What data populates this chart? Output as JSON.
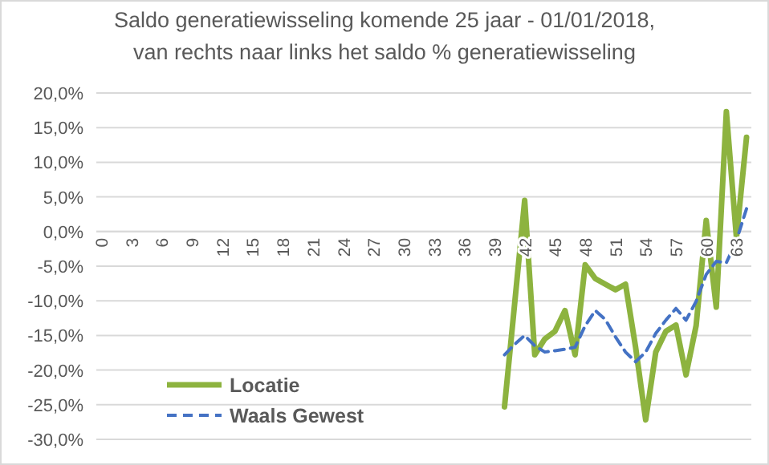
{
  "chart_data": {
    "type": "line",
    "title": "Saldo generatiewisseling komende 25 jaar - 01/01/2018,\nvan rechts naar links  het saldo % generatiewisseling",
    "categories": [
      "0",
      null,
      null,
      "3",
      null,
      null,
      "6",
      null,
      null,
      "9",
      null,
      null,
      "12",
      null,
      null,
      "15",
      null,
      null,
      "18",
      null,
      null,
      "21",
      null,
      null,
      "24",
      null,
      null,
      "27",
      null,
      null,
      "30",
      null,
      null,
      "33",
      null,
      null,
      "36",
      null,
      null,
      "39",
      null,
      null,
      "42",
      null,
      null,
      "45",
      null,
      null,
      "48",
      null,
      null,
      "51",
      null,
      null,
      "54",
      null,
      null,
      "57",
      null,
      null,
      "60",
      null,
      null,
      "63",
      null
    ],
    "series": [
      {
        "name": "Locatie",
        "color": "#8db33f",
        "line_style": "solid",
        "values": [
          null,
          null,
          null,
          null,
          null,
          null,
          null,
          null,
          null,
          null,
          null,
          null,
          null,
          null,
          null,
          null,
          null,
          null,
          null,
          null,
          null,
          null,
          null,
          null,
          null,
          null,
          null,
          null,
          null,
          null,
          null,
          null,
          null,
          null,
          null,
          null,
          null,
          null,
          null,
          null,
          -25.3,
          -10.5,
          4.5,
          -17.8,
          -15.5,
          -14.4,
          -11.4,
          -17.8,
          -4.8,
          -6.8,
          -7.6,
          -8.4,
          -7.6,
          -16.7,
          -27.2,
          -17.4,
          -14.4,
          -13.5,
          -20.7,
          -13.6,
          1.6,
          -10.9,
          17.3,
          -0.9,
          13.6
        ]
      },
      {
        "name": "Waals Gewest",
        "color": "#4472c4",
        "line_style": "dashed",
        "values": [
          null,
          null,
          null,
          null,
          null,
          null,
          null,
          null,
          null,
          null,
          null,
          null,
          null,
          null,
          null,
          null,
          null,
          null,
          null,
          null,
          null,
          null,
          null,
          null,
          null,
          null,
          null,
          null,
          null,
          null,
          null,
          null,
          null,
          null,
          null,
          null,
          null,
          null,
          null,
          null,
          -17.8,
          -16.3,
          -15,
          -16.5,
          -17.4,
          -17.2,
          -17,
          -16.7,
          -13.6,
          -11.4,
          -12.7,
          -15.2,
          -17.4,
          -18.8,
          -17.4,
          -14.7,
          -12.8,
          -11.1,
          -12.8,
          -10.1,
          -6.2,
          -4.3,
          -4.5,
          -1.3,
          3.3
        ]
      }
    ],
    "ylim": [
      -30,
      20
    ],
    "yticks": [
      {
        "value": -30,
        "label": "-30,0%"
      },
      {
        "value": -25,
        "label": "-25,0%"
      },
      {
        "value": -20,
        "label": "-20,0%"
      },
      {
        "value": -15,
        "label": "-15,0%"
      },
      {
        "value": -10,
        "label": "-10,0%"
      },
      {
        "value": -5,
        "label": "-5,0%"
      },
      {
        "value": 0,
        "label": "0,0%"
      },
      {
        "value": 5,
        "label": "5,0%"
      },
      {
        "value": 10,
        "label": "10,0%"
      },
      {
        "value": 15,
        "label": "15,0%"
      },
      {
        "value": 20,
        "label": "20,0%"
      }
    ],
    "grid": "y",
    "legend": "bottom left"
  }
}
